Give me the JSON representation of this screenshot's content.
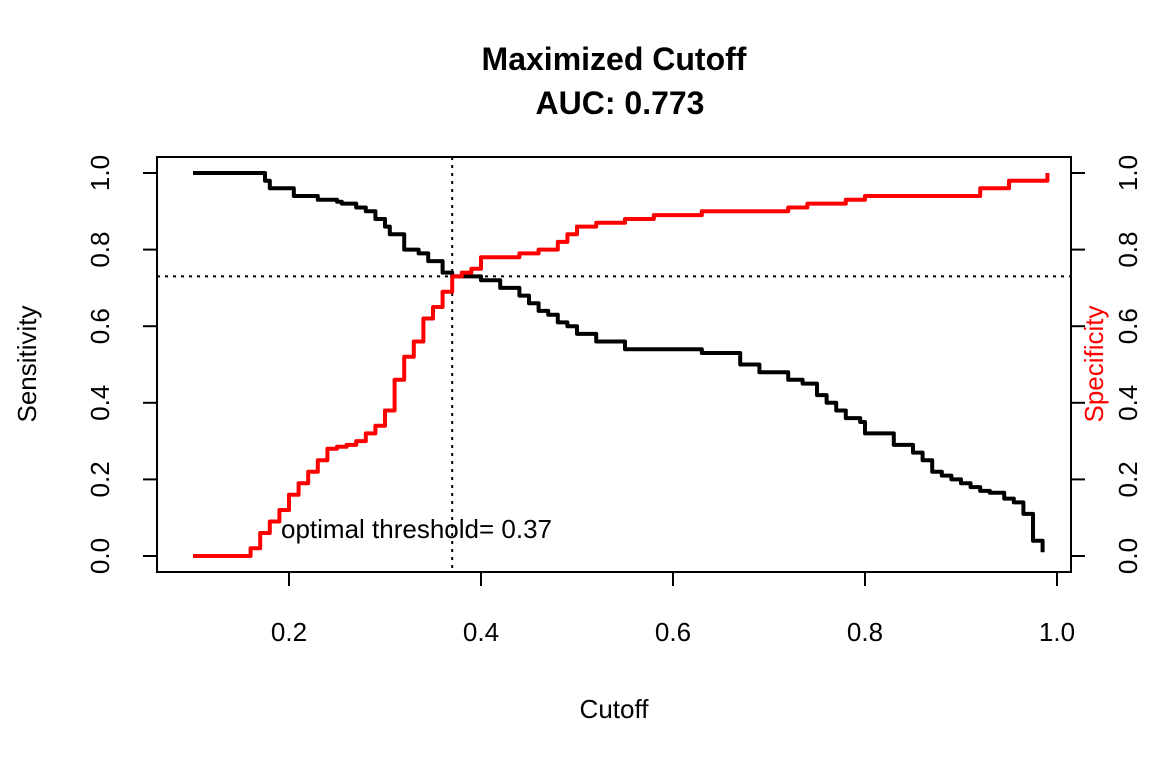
{
  "chart_data": {
    "type": "line",
    "title": "Maximized Cutoff",
    "subtitle": "AUC:  0.773",
    "xlabel": "Cutoff",
    "ylabel": "Sensitivity",
    "y2label": "Specificity",
    "xlim": [
      0.1,
      0.99
    ],
    "ylim": [
      0.0,
      1.0
    ],
    "x_ticks": [
      0.2,
      0.4,
      0.6,
      0.8,
      1.0
    ],
    "x_tick_labels": [
      "0.2",
      "0.4",
      "0.6",
      "0.8",
      "1.0"
    ],
    "y_ticks": [
      0.0,
      0.2,
      0.4,
      0.6,
      0.8,
      1.0
    ],
    "y_tick_labels": [
      "0.0",
      "0.2",
      "0.4",
      "0.6",
      "0.8",
      "1.0"
    ],
    "y2_ticks": [
      0.0,
      0.2,
      0.4,
      0.6,
      0.8,
      1.0
    ],
    "y2_tick_labels": [
      "0.0",
      "0.2",
      "0.4",
      "0.6",
      "0.8",
      "1.0"
    ],
    "grid": false,
    "annotation": "optimal threshold= 0.37",
    "annotation_position": {
      "x": 0.2,
      "y": 0.07
    },
    "optimal_threshold": 0.37,
    "optimal_value": 0.73,
    "colors": {
      "sensitivity": "#000000",
      "specificity": "#ff0000"
    },
    "series": [
      {
        "name": "Sensitivity",
        "axis": "left",
        "x": [
          0.1,
          0.165,
          0.175,
          0.18,
          0.19,
          0.205,
          0.23,
          0.25,
          0.255,
          0.27,
          0.28,
          0.29,
          0.3,
          0.305,
          0.32,
          0.335,
          0.345,
          0.36,
          0.37,
          0.38,
          0.4,
          0.42,
          0.44,
          0.45,
          0.46,
          0.47,
          0.48,
          0.49,
          0.5,
          0.52,
          0.55,
          0.58,
          0.63,
          0.67,
          0.69,
          0.72,
          0.735,
          0.75,
          0.76,
          0.77,
          0.78,
          0.795,
          0.8,
          0.83,
          0.85,
          0.86,
          0.87,
          0.88,
          0.89,
          0.9,
          0.91,
          0.92,
          0.93,
          0.945,
          0.955,
          0.965,
          0.975,
          0.985
        ],
        "values": [
          1.0,
          1.0,
          0.98,
          0.96,
          0.96,
          0.94,
          0.93,
          0.925,
          0.92,
          0.91,
          0.9,
          0.88,
          0.86,
          0.84,
          0.8,
          0.79,
          0.77,
          0.74,
          0.73,
          0.73,
          0.72,
          0.7,
          0.68,
          0.66,
          0.64,
          0.63,
          0.61,
          0.6,
          0.58,
          0.56,
          0.54,
          0.54,
          0.53,
          0.5,
          0.48,
          0.46,
          0.45,
          0.42,
          0.4,
          0.38,
          0.36,
          0.35,
          0.32,
          0.29,
          0.27,
          0.25,
          0.22,
          0.21,
          0.2,
          0.19,
          0.18,
          0.17,
          0.165,
          0.15,
          0.14,
          0.11,
          0.04,
          0.01
        ]
      },
      {
        "name": "Specificity",
        "axis": "right",
        "x": [
          0.1,
          0.16,
          0.17,
          0.18,
          0.19,
          0.2,
          0.21,
          0.22,
          0.23,
          0.24,
          0.25,
          0.26,
          0.27,
          0.28,
          0.29,
          0.3,
          0.31,
          0.32,
          0.33,
          0.34,
          0.35,
          0.36,
          0.37,
          0.38,
          0.39,
          0.4,
          0.42,
          0.44,
          0.46,
          0.48,
          0.49,
          0.5,
          0.52,
          0.55,
          0.58,
          0.63,
          0.68,
          0.72,
          0.74,
          0.78,
          0.8,
          0.85,
          0.88,
          0.92,
          0.95,
          0.99
        ],
        "values": [
          0.0,
          0.02,
          0.06,
          0.09,
          0.12,
          0.16,
          0.19,
          0.22,
          0.25,
          0.28,
          0.285,
          0.29,
          0.3,
          0.32,
          0.34,
          0.38,
          0.46,
          0.52,
          0.56,
          0.62,
          0.65,
          0.69,
          0.73,
          0.74,
          0.75,
          0.78,
          0.78,
          0.79,
          0.8,
          0.82,
          0.84,
          0.86,
          0.87,
          0.88,
          0.89,
          0.9,
          0.9,
          0.91,
          0.92,
          0.93,
          0.94,
          0.94,
          0.94,
          0.96,
          0.98,
          1.0
        ]
      }
    ]
  }
}
